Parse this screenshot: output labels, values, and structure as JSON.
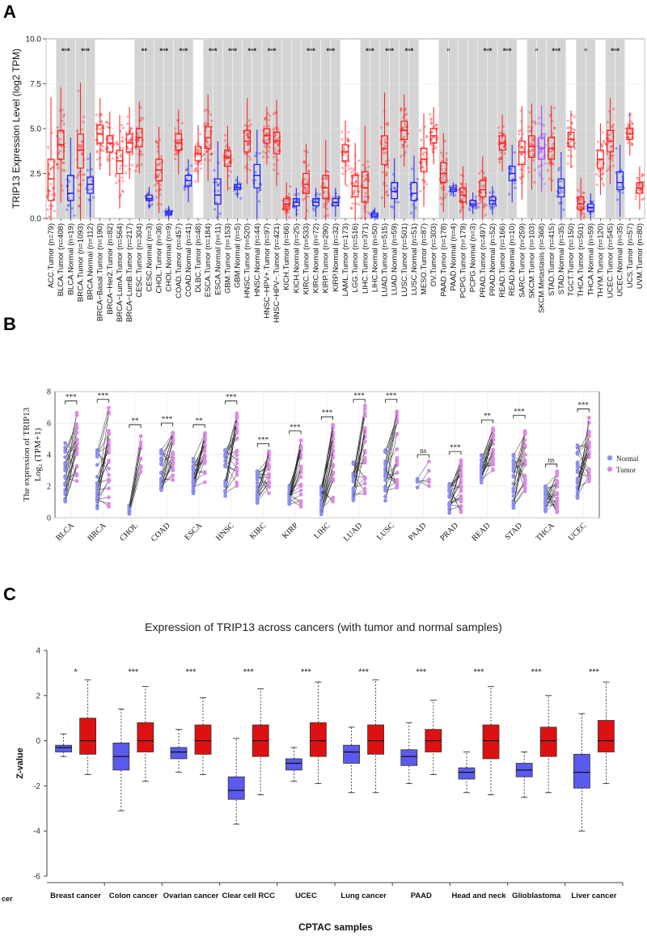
{
  "panel_labels": [
    "A",
    "B",
    "C"
  ],
  "chart_data": [
    {
      "type": "box",
      "panel": "A",
      "ylabel": "TRIP13 Expression Level (log2 TPM)",
      "ylim": [
        0,
        10
      ],
      "yticks": [
        "0.0",
        "2.5",
        "5.0",
        "7.5",
        "10.0"
      ],
      "legend": [],
      "tumor_color": "#ff1a1a",
      "normal_color": "#1a1aff",
      "metastasis_color": "#a040ff",
      "categories": [
        {
          "label": "ACC.Tumor (n=79)",
          "kind": "tumor",
          "median": 2.2,
          "q1": 1.0,
          "q3": 3.3
        },
        {
          "label": "BLCA.Tumor (n=408)",
          "kind": "tumor",
          "median": 4.1,
          "q1": 3.3,
          "q3": 4.9
        },
        {
          "label": "BLCA.Normal (n=19)",
          "kind": "normal",
          "median": 1.4,
          "q1": 1.0,
          "q3": 2.4
        },
        {
          "label": "BRCA.Tumor (n=1093)",
          "kind": "tumor",
          "median": 3.8,
          "q1": 2.8,
          "q3": 4.7
        },
        {
          "label": "BRCA.Normal (n=112)",
          "kind": "normal",
          "median": 1.9,
          "q1": 1.4,
          "q3": 2.3
        },
        {
          "label": "BRCA−Basal.Tumor (n=190)",
          "kind": "tumor",
          "median": 4.7,
          "q1": 4.2,
          "q3": 5.2
        },
        {
          "label": "BRCA−Her2.Tumor (n=82)",
          "kind": "tumor",
          "median": 4.2,
          "q1": 3.7,
          "q3": 4.6
        },
        {
          "label": "BRCA−LumA.Tumor (n=564)",
          "kind": "tumor",
          "median": 3.2,
          "q1": 2.5,
          "q3": 3.8
        },
        {
          "label": "BRCA−LumB.Tumor (n=217)",
          "kind": "tumor",
          "median": 4.2,
          "q1": 3.7,
          "q3": 4.7
        },
        {
          "label": "CESC.Tumor (n=304)",
          "kind": "tumor",
          "median": 4.5,
          "q1": 4.0,
          "q3": 5.0
        },
        {
          "label": "CESC.Normal (n=3)",
          "kind": "normal",
          "median": 1.1,
          "q1": 1.0,
          "q3": 1.3
        },
        {
          "label": "CHOL.Tumor (n=36)",
          "kind": "tumor",
          "median": 2.7,
          "q1": 2.1,
          "q3": 3.3
        },
        {
          "label": "CHOL.Normal (n=9)",
          "kind": "normal",
          "median": 0.3,
          "q1": 0.2,
          "q3": 0.4
        },
        {
          "label": "COAD.Tumor (n=457)",
          "kind": "tumor",
          "median": 4.2,
          "q1": 3.8,
          "q3": 4.7
        },
        {
          "label": "COAD.Normal (n=41)",
          "kind": "normal",
          "median": 2.1,
          "q1": 1.8,
          "q3": 2.4
        },
        {
          "label": "DLBC.Tumor (n=48)",
          "kind": "tumor",
          "median": 3.6,
          "q1": 3.2,
          "q3": 4.0
        },
        {
          "label": "ESCA.Tumor (n=184)",
          "kind": "tumor",
          "median": 4.5,
          "q1": 3.9,
          "q3": 5.1
        },
        {
          "label": "ESCA.Normal (n=11)",
          "kind": "normal",
          "median": 1.3,
          "q1": 0.8,
          "q3": 2.2
        },
        {
          "label": "GBM.Tumor (n=153)",
          "kind": "tumor",
          "median": 3.4,
          "q1": 2.9,
          "q3": 3.8
        },
        {
          "label": "GBM.Normal (n=5)",
          "kind": "normal",
          "median": 1.7,
          "q1": 1.6,
          "q3": 1.9
        },
        {
          "label": "HNSC.Tumor (n=520)",
          "kind": "tumor",
          "median": 4.3,
          "q1": 3.7,
          "q3": 4.9
        },
        {
          "label": "HNSC.Normal (n=44)",
          "kind": "normal",
          "median": 2.4,
          "q1": 1.7,
          "q3": 3.0
        },
        {
          "label": "HNSC−HPV+.Tumor (n=97)",
          "kind": "tumor",
          "median": 4.6,
          "q1": 4.2,
          "q3": 5.0
        },
        {
          "label": "HNSC−HPV−.Tumor (n=421)",
          "kind": "tumor",
          "median": 4.3,
          "q1": 3.6,
          "q3": 4.8
        },
        {
          "label": "KICH.Tumor (n=66)",
          "kind": "tumor",
          "median": 0.8,
          "q1": 0.5,
          "q3": 1.1
        },
        {
          "label": "KICH.Normal (n=25)",
          "kind": "normal",
          "median": 0.9,
          "q1": 0.7,
          "q3": 1.1
        },
        {
          "label": "KIRC.Tumor (n=533)",
          "kind": "tumor",
          "median": 1.9,
          "q1": 1.4,
          "q3": 2.5
        },
        {
          "label": "KIRC.Normal (n=72)",
          "kind": "normal",
          "median": 0.9,
          "q1": 0.7,
          "q3": 1.1
        },
        {
          "label": "KIRP.Tumor (n=290)",
          "kind": "tumor",
          "median": 1.7,
          "q1": 1.1,
          "q3": 2.4
        },
        {
          "label": "KIRP.Normal (n=32)",
          "kind": "normal",
          "median": 0.9,
          "q1": 0.7,
          "q3": 1.1
        },
        {
          "label": "LAML.Tumor (n=173)",
          "kind": "tumor",
          "median": 3.7,
          "q1": 3.2,
          "q3": 4.1
        },
        {
          "label": "LGG.Tumor (n=516)",
          "kind": "tumor",
          "median": 1.8,
          "q1": 1.2,
          "q3": 2.4
        },
        {
          "label": "LIHC.Tumor (n=371)",
          "kind": "tumor",
          "median": 1.7,
          "q1": 0.9,
          "q3": 2.6
        },
        {
          "label": "LIHC.Normal (n=50)",
          "kind": "normal",
          "median": 0.2,
          "q1": 0.1,
          "q3": 0.3
        },
        {
          "label": "LUAD.Tumor (n=515)",
          "kind": "tumor",
          "median": 3.9,
          "q1": 3.0,
          "q3": 4.6
        },
        {
          "label": "LUAD.Normal (n=59)",
          "kind": "normal",
          "median": 1.5,
          "q1": 1.1,
          "q3": 2.0
        },
        {
          "label": "LUSC.Tumor (n=501)",
          "kind": "tumor",
          "median": 4.9,
          "q1": 4.4,
          "q3": 5.4
        },
        {
          "label": "LUSC.Normal (n=51)",
          "kind": "normal",
          "median": 1.4,
          "q1": 1.0,
          "q3": 2.0
        },
        {
          "label": "MESO.Tumor (n=87)",
          "kind": "tumor",
          "median": 3.3,
          "q1": 2.6,
          "q3": 3.9
        },
        {
          "label": "OV.Tumor (n=303)",
          "kind": "tumor",
          "median": 4.6,
          "q1": 4.2,
          "q3": 5.0
        },
        {
          "label": "PAAD.Tumor (n=178)",
          "kind": "tumor",
          "median": 2.5,
          "q1": 2.0,
          "q3": 3.1
        },
        {
          "label": "PAAD.Normal (n=4)",
          "kind": "normal",
          "median": 1.6,
          "q1": 1.5,
          "q3": 1.7
        },
        {
          "label": "PCPG.Tumor (n=179)",
          "kind": "tumor",
          "median": 1.3,
          "q1": 0.9,
          "q3": 1.7
        },
        {
          "label": "PCPG.Normal (n=3)",
          "kind": "normal",
          "median": 0.8,
          "q1": 0.7,
          "q3": 1.0
        },
        {
          "label": "PRAD.Tumor (n=497)",
          "kind": "tumor",
          "median": 1.6,
          "q1": 1.2,
          "q3": 2.1
        },
        {
          "label": "PRAD.Normal (n=52)",
          "kind": "normal",
          "median": 1.0,
          "q1": 0.8,
          "q3": 1.2
        },
        {
          "label": "READ.Tumor (n=166)",
          "kind": "tumor",
          "median": 4.2,
          "q1": 3.8,
          "q3": 4.6
        },
        {
          "label": "READ.Normal (n=10)",
          "kind": "normal",
          "median": 2.5,
          "q1": 2.1,
          "q3": 2.9
        },
        {
          "label": "SARC.Tumor (n=259)",
          "kind": "tumor",
          "median": 3.7,
          "q1": 3.0,
          "q3": 4.3
        },
        {
          "label": "SKCM.Tumor (n=103)",
          "kind": "tumor",
          "median": 4.0,
          "q1": 3.4,
          "q3": 4.6
        },
        {
          "label": "SKCM.Metastasis (n=368)",
          "kind": "metastasis",
          "median": 3.9,
          "q1": 3.3,
          "q3": 4.5
        },
        {
          "label": "STAD.Tumor (n=415)",
          "kind": "tumor",
          "median": 3.9,
          "q1": 3.3,
          "q3": 4.5
        },
        {
          "label": "STAD.Normal (n=35)",
          "kind": "normal",
          "median": 1.7,
          "q1": 1.2,
          "q3": 2.2
        },
        {
          "label": "TGCT.Tumor (n=150)",
          "kind": "tumor",
          "median": 4.4,
          "q1": 4.0,
          "q3": 4.8
        },
        {
          "label": "THCA.Tumor (n=501)",
          "kind": "tumor",
          "median": 0.8,
          "q1": 0.5,
          "q3": 1.2
        },
        {
          "label": "THCA.Normal (n=59)",
          "kind": "normal",
          "median": 0.6,
          "q1": 0.4,
          "q3": 0.8
        },
        {
          "label": "THYM.Tumor (n=120)",
          "kind": "tumor",
          "median": 3.3,
          "q1": 2.8,
          "q3": 3.8
        },
        {
          "label": "UCEC.Tumor (n=545)",
          "kind": "tumor",
          "median": 4.3,
          "q1": 3.7,
          "q3": 4.9
        },
        {
          "label": "UCEC.Normal (n=35)",
          "kind": "normal",
          "median": 2.0,
          "q1": 1.6,
          "q3": 2.6
        },
        {
          "label": "UCS.Tumor (n=57)",
          "kind": "tumor",
          "median": 4.7,
          "q1": 4.4,
          "q3": 5.0
        },
        {
          "label": "UVM.Tumor (n=80)",
          "kind": "tumor",
          "median": 1.7,
          "q1": 1.4,
          "q3": 2.0
        }
      ],
      "significance": [
        {
          "categories": [
            1,
            2
          ],
          "label": "***"
        },
        {
          "categories": [
            3,
            4
          ],
          "label": "***"
        },
        {
          "categories": [
            9,
            10
          ],
          "label": "**"
        },
        {
          "categories": [
            11,
            12
          ],
          "label": "***"
        },
        {
          "categories": [
            13,
            14
          ],
          "label": "***"
        },
        {
          "categories": [
            16,
            17
          ],
          "label": "***"
        },
        {
          "categories": [
            18,
            19
          ],
          "label": "***"
        },
        {
          "categories": [
            20,
            21
          ],
          "label": "***"
        },
        {
          "categories": [
            22,
            23
          ],
          "label": "***"
        },
        {
          "categories": [
            24,
            25
          ],
          "label": ""
        },
        {
          "categories": [
            26,
            27
          ],
          "label": "***"
        },
        {
          "categories": [
            28,
            29
          ],
          "label": "***"
        },
        {
          "categories": [
            32,
            33
          ],
          "label": "***"
        },
        {
          "categories": [
            34,
            35
          ],
          "label": "***"
        },
        {
          "categories": [
            36,
            37
          ],
          "label": "***"
        },
        {
          "categories": [
            40,
            41
          ],
          "label": "*"
        },
        {
          "categories": [
            42,
            43
          ],
          "label": ""
        },
        {
          "categories": [
            44,
            45
          ],
          "label": "***"
        },
        {
          "categories": [
            46,
            47
          ],
          "label": "***"
        },
        {
          "categories": [
            49,
            50
          ],
          "label": "*"
        },
        {
          "categories": [
            51,
            52
          ],
          "label": "***"
        },
        {
          "categories": [
            54,
            55
          ],
          "label": "*"
        },
        {
          "categories": [
            57,
            58
          ],
          "label": "***"
        }
      ]
    },
    {
      "type": "paired-scatter",
      "panel": "B",
      "ylabel_line1": "The  expression  of TRIP13",
      "ylabel_line2": "Log₂ (TPM+1)",
      "ylim": [
        0,
        8
      ],
      "yticks": [
        "0",
        "2",
        "4",
        "6",
        "8"
      ],
      "legend": [
        {
          "label": "Normal",
          "color": "#8c8ff0"
        },
        {
          "label": "Tumor",
          "color": "#e088e6"
        }
      ],
      "categories": [
        "BLCA",
        "BRCA",
        "CHOL",
        "COAD",
        "ESCA",
        "HNSC",
        "KIRC",
        "KIRP",
        "LIHC",
        "LUAD",
        "LUSC",
        "PAAD",
        "PRAD",
        "READ",
        "STAD",
        "THCA",
        "UCEC"
      ],
      "normal_range": [
        [
          1.0,
          4.8
        ],
        [
          0.5,
          4.5
        ],
        [
          0.2,
          0.8
        ],
        [
          1.6,
          4.3
        ],
        [
          1.5,
          3.8
        ],
        [
          1.2,
          4.4
        ],
        [
          0.8,
          3.0
        ],
        [
          0.8,
          2.2
        ],
        [
          0.2,
          2.0
        ],
        [
          1.0,
          4.0
        ],
        [
          0.8,
          4.3
        ],
        [
          1.8,
          2.5
        ],
        [
          0.2,
          2.4
        ],
        [
          2.2,
          4.0
        ],
        [
          0.6,
          4.1
        ],
        [
          0.4,
          2.0
        ],
        [
          1.2,
          5.0
        ]
      ],
      "tumor_range": [
        [
          1.8,
          7.0
        ],
        [
          0.6,
          7.4
        ],
        [
          2.5,
          5.5
        ],
        [
          2.2,
          5.6
        ],
        [
          2.2,
          5.5
        ],
        [
          2.0,
          7.0
        ],
        [
          1.3,
          4.3
        ],
        [
          0.6,
          5.1
        ],
        [
          0.4,
          6.0
        ],
        [
          1.5,
          7.2
        ],
        [
          1.8,
          7.1
        ],
        [
          2.0,
          3.6
        ],
        [
          0.3,
          3.8
        ],
        [
          3.0,
          5.8
        ],
        [
          1.5,
          6.1
        ],
        [
          0.3,
          3.0
        ],
        [
          2.0,
          6.5
        ]
      ],
      "significance": [
        "***",
        "***",
        "**",
        "***",
        "**",
        "***",
        "***",
        "***",
        "***",
        "***",
        "***",
        "ns",
        "***",
        "**",
        "***",
        "ns",
        "***"
      ]
    },
    {
      "type": "box",
      "panel": "C",
      "title": "Expression of TRIP13 across cancers (with tumor and normal samples)",
      "xlabel": "CPTAC samples",
      "ylabel": "Z-value",
      "ylim": [
        -6,
        4
      ],
      "yticks": [
        "-6",
        "-4",
        "-2",
        "0",
        "2",
        "4"
      ],
      "x_prefix": "cer",
      "normal_color": "#5a5aee",
      "tumor_color": "#dd1111",
      "categories": [
        "Breast cancer",
        "Colon cancer",
        "Ovarian cancer",
        "Clear cell RCC",
        "UCEC",
        "Lung cancer",
        "PAAD",
        "Head and neck",
        "Glioblastoma",
        "Liver cancer"
      ],
      "series": [
        {
          "name": "Normal",
          "whisker_low": [
            -0.7,
            -3.1,
            -1.4,
            -3.7,
            -1.8,
            -2.3,
            -1.9,
            -2.3,
            -2.5,
            -4.0
          ],
          "q1": [
            -0.5,
            -1.3,
            -0.8,
            -2.6,
            -1.3,
            -1.0,
            -1.1,
            -1.7,
            -1.6,
            -2.1
          ],
          "median": [
            -0.3,
            -0.7,
            -0.5,
            -2.2,
            -1.0,
            -0.5,
            -0.7,
            -1.4,
            -1.3,
            -1.4
          ],
          "q3": [
            -0.2,
            -0.1,
            -0.3,
            -1.6,
            -0.8,
            -0.2,
            -0.4,
            -1.2,
            -1.0,
            -0.6
          ],
          "whisker_high": [
            0.3,
            1.4,
            0.5,
            0.1,
            -0.3,
            0.6,
            0.8,
            -0.5,
            -0.5,
            1.2
          ]
        },
        {
          "name": "Tumor",
          "whisker_low": [
            -1.5,
            -1.8,
            -1.5,
            -2.4,
            -1.9,
            -2.3,
            -1.5,
            -2.4,
            -2.3,
            -1.9
          ],
          "q1": [
            -0.6,
            -0.5,
            -0.6,
            -0.7,
            -0.7,
            -0.6,
            -0.5,
            -0.8,
            -0.7,
            -0.5
          ],
          "median": [
            0.0,
            0.0,
            0.0,
            0.0,
            0.0,
            0.0,
            0.0,
            0.0,
            0.0,
            0.0
          ],
          "q3": [
            1.0,
            0.8,
            0.7,
            0.7,
            0.8,
            0.7,
            0.5,
            0.7,
            0.6,
            0.9
          ],
          "whisker_high": [
            2.7,
            2.4,
            1.9,
            2.3,
            2.6,
            2.7,
            1.8,
            2.4,
            2.0,
            2.6
          ]
        }
      ],
      "significance": [
        "*",
        "***",
        "***",
        "***",
        "***",
        "***",
        "***",
        "***",
        "***",
        "***"
      ]
    }
  ]
}
